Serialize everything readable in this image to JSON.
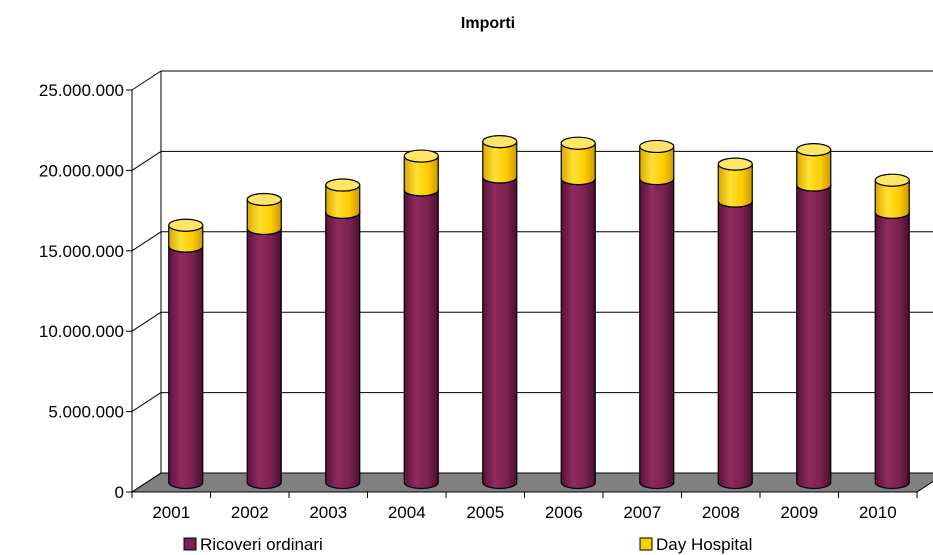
{
  "chart_data": {
    "type": "bar",
    "stacked": true,
    "style": "3d-cylinder",
    "title": "Importi",
    "xlabel": "",
    "ylabel": "",
    "categories": [
      "2001",
      "2002",
      "2003",
      "2004",
      "2005",
      "2006",
      "2007",
      "2008",
      "2009",
      "2010"
    ],
    "series": [
      {
        "name": "Ricoveri ordinari",
        "color": "#7B2150",
        "values": [
          14700000,
          15800000,
          16800000,
          18200000,
          19000000,
          18900000,
          18900000,
          17500000,
          18500000,
          16800000
        ]
      },
      {
        "name": "Day Hospital",
        "color": "#FFCC00",
        "values": [
          1300000,
          1800000,
          1700000,
          2100000,
          2200000,
          2200000,
          2000000,
          2300000,
          2200000,
          2000000
        ]
      }
    ],
    "ylim": [
      0,
      25000000
    ],
    "yticks": [
      "0",
      "5.000.000",
      "10.000.000",
      "15.000.000",
      "20.000.000",
      "25.000.000"
    ],
    "grid": true,
    "legend_position": "bottom"
  }
}
